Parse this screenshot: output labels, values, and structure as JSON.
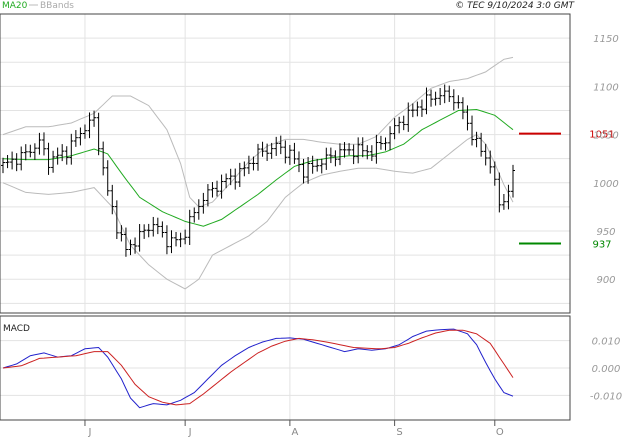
{
  "header": {
    "legend": [
      {
        "label": "MA20",
        "color": "#22aa22"
      },
      {
        "label": "BBands",
        "color": "#aaaaaa"
      }
    ],
    "copyright": "© TEC 9/10/2024 3:0 GMT"
  },
  "colors": {
    "price": "#000000",
    "ma20": "#22aa22",
    "bbands": "#bbbbbb",
    "resistance": "#cc0000",
    "support": "#008800",
    "macd": "#2222cc",
    "signal": "#cc2222"
  },
  "chart_data": [
    {
      "type": "ohlc",
      "title": "",
      "x_labels": [
        "J",
        "J",
        "A",
        "S",
        "O"
      ],
      "x_label_index": [
        18,
        40,
        63,
        86,
        108
      ],
      "n_periods": 113,
      "ylim": [
        865,
        1175
      ],
      "y_ticks": [
        900,
        950,
        1000,
        1050,
        1100,
        1150
      ],
      "grid": true,
      "close_anchors": [
        [
          0,
          1018
        ],
        [
          5,
          1030
        ],
        [
          8,
          1042
        ],
        [
          10,
          1022
        ],
        [
          14,
          1033
        ],
        [
          18,
          1058
        ],
        [
          20,
          1065
        ],
        [
          23,
          990
        ],
        [
          25,
          955
        ],
        [
          27,
          930
        ],
        [
          30,
          945
        ],
        [
          33,
          958
        ],
        [
          36,
          940
        ],
        [
          39,
          940
        ],
        [
          41,
          960
        ],
        [
          44,
          985
        ],
        [
          48,
          1000
        ],
        [
          52,
          1010
        ],
        [
          56,
          1030
        ],
        [
          60,
          1038
        ],
        [
          63,
          1030
        ],
        [
          66,
          1012
        ],
        [
          70,
          1022
        ],
        [
          74,
          1032
        ],
        [
          78,
          1034
        ],
        [
          81,
          1032
        ],
        [
          84,
          1045
        ],
        [
          87,
          1062
        ],
        [
          90,
          1075
        ],
        [
          93,
          1085
        ],
        [
          96,
          1092
        ],
        [
          99,
          1088
        ],
        [
          101,
          1072
        ],
        [
          104,
          1040
        ],
        [
          107,
          1020
        ],
        [
          108,
          998
        ],
        [
          109,
          978
        ],
        [
          111,
          990
        ],
        [
          112,
          1010
        ]
      ],
      "ma20_anchors": [
        [
          0,
          1025
        ],
        [
          5,
          1024
        ],
        [
          10,
          1024
        ],
        [
          15,
          1028
        ],
        [
          20,
          1035
        ],
        [
          23,
          1030
        ],
        [
          26,
          1010
        ],
        [
          30,
          985
        ],
        [
          35,
          970
        ],
        [
          40,
          960
        ],
        [
          44,
          955
        ],
        [
          48,
          962
        ],
        [
          52,
          975
        ],
        [
          56,
          988
        ],
        [
          60,
          1003
        ],
        [
          64,
          1017
        ],
        [
          68,
          1023
        ],
        [
          72,
          1026
        ],
        [
          76,
          1028
        ],
        [
          80,
          1028
        ],
        [
          84,
          1032
        ],
        [
          88,
          1040
        ],
        [
          92,
          1055
        ],
        [
          96,
          1065
        ],
        [
          100,
          1075
        ],
        [
          104,
          1076
        ],
        [
          108,
          1070
        ],
        [
          112,
          1055
        ]
      ],
      "band_upper_anchors": [
        [
          0,
          1050
        ],
        [
          5,
          1058
        ],
        [
          10,
          1058
        ],
        [
          15,
          1062
        ],
        [
          20,
          1072
        ],
        [
          24,
          1090
        ],
        [
          28,
          1090
        ],
        [
          32,
          1080
        ],
        [
          36,
          1055
        ],
        [
          39,
          1020
        ],
        [
          41,
          985
        ],
        [
          43,
          975
        ],
        [
          46,
          980
        ],
        [
          50,
          1000
        ],
        [
          54,
          1022
        ],
        [
          58,
          1038
        ],
        [
          62,
          1045
        ],
        [
          66,
          1045
        ],
        [
          70,
          1042
        ],
        [
          74,
          1040
        ],
        [
          78,
          1040
        ],
        [
          82,
          1048
        ],
        [
          86,
          1068
        ],
        [
          90,
          1082
        ],
        [
          94,
          1098
        ],
        [
          98,
          1105
        ],
        [
          102,
          1108
        ],
        [
          106,
          1115
        ],
        [
          110,
          1128
        ],
        [
          112,
          1130
        ]
      ],
      "band_lower_anchors": [
        [
          0,
          1000
        ],
        [
          5,
          990
        ],
        [
          10,
          988
        ],
        [
          15,
          990
        ],
        [
          20,
          995
        ],
        [
          24,
          975
        ],
        [
          28,
          935
        ],
        [
          32,
          915
        ],
        [
          36,
          900
        ],
        [
          40,
          890
        ],
        [
          43,
          900
        ],
        [
          46,
          925
        ],
        [
          50,
          935
        ],
        [
          54,
          945
        ],
        [
          58,
          960
        ],
        [
          62,
          985
        ],
        [
          66,
          1000
        ],
        [
          70,
          1008
        ],
        [
          74,
          1012
        ],
        [
          78,
          1015
        ],
        [
          82,
          1015
        ],
        [
          86,
          1012
        ],
        [
          90,
          1010
        ],
        [
          94,
          1015
        ],
        [
          98,
          1030
        ],
        [
          102,
          1045
        ],
        [
          104,
          1050
        ],
        [
          106,
          1040
        ],
        [
          108,
          1020
        ],
        [
          110,
          998
        ],
        [
          112,
          980
        ]
      ],
      "levels": [
        {
          "name": "resistance",
          "value": 1051,
          "label": "1051",
          "color": "#cc0000"
        },
        {
          "name": "support",
          "value": 937,
          "label": "937",
          "color": "#008800"
        }
      ]
    },
    {
      "type": "line",
      "title": "MACD",
      "ylim": [
        -0.019,
        0.019
      ],
      "y_ticks": [
        {
          "value": 0.01,
          "label": "0.010"
        },
        {
          "value": 0.0,
          "label": "0.000"
        },
        {
          "value": -0.01,
          "label": "-0.010"
        }
      ],
      "series": [
        {
          "name": "",
          "color": "#2222cc",
          "anchors": [
            [
              0,
              0.0
            ],
            [
              3,
              0.0015
            ],
            [
              6,
              0.0045
            ],
            [
              9,
              0.0055
            ],
            [
              12,
              0.004
            ],
            [
              15,
              0.0045
            ],
            [
              18,
              0.007
            ],
            [
              21,
              0.0075
            ],
            [
              23,
              0.004
            ],
            [
              26,
              -0.004
            ],
            [
              28,
              -0.011
            ],
            [
              30,
              -0.0145
            ],
            [
              33,
              -0.013
            ],
            [
              36,
              -0.0135
            ],
            [
              39,
              -0.0118
            ],
            [
              42,
              -0.009
            ],
            [
              45,
              -0.004
            ],
            [
              48,
              0.001
            ],
            [
              51,
              0.0045
            ],
            [
              54,
              0.0075
            ],
            [
              57,
              0.0095
            ],
            [
              60,
              0.0108
            ],
            [
              63,
              0.011
            ],
            [
              66,
              0.0105
            ],
            [
              69,
              0.009
            ],
            [
              72,
              0.0075
            ],
            [
              75,
              0.006
            ],
            [
              78,
              0.007
            ],
            [
              81,
              0.0065
            ],
            [
              84,
              0.007
            ],
            [
              87,
              0.0085
            ],
            [
              90,
              0.0115
            ],
            [
              93,
              0.0135
            ],
            [
              96,
              0.014
            ],
            [
              99,
              0.0142
            ],
            [
              102,
              0.0125
            ],
            [
              104,
              0.0085
            ],
            [
              106,
              0.002
            ],
            [
              108,
              -0.004
            ],
            [
              110,
              -0.009
            ],
            [
              112,
              -0.0103
            ]
          ]
        },
        {
          "name": "",
          "color": "#cc2222",
          "anchors": [
            [
              0,
              0.0
            ],
            [
              4,
              0.0008
            ],
            [
              8,
              0.0035
            ],
            [
              12,
              0.004
            ],
            [
              16,
              0.0045
            ],
            [
              20,
              0.006
            ],
            [
              23,
              0.006
            ],
            [
              26,
              0.001
            ],
            [
              29,
              -0.006
            ],
            [
              32,
              -0.0105
            ],
            [
              35,
              -0.0125
            ],
            [
              38,
              -0.0135
            ],
            [
              41,
              -0.013
            ],
            [
              44,
              -0.0095
            ],
            [
              47,
              -0.0055
            ],
            [
              50,
              -0.0015
            ],
            [
              53,
              0.002
            ],
            [
              56,
              0.0055
            ],
            [
              59,
              0.008
            ],
            [
              62,
              0.0098
            ],
            [
              65,
              0.0108
            ],
            [
              68,
              0.0103
            ],
            [
              71,
              0.0095
            ],
            [
              74,
              0.0085
            ],
            [
              77,
              0.0075
            ],
            [
              80,
              0.0072
            ],
            [
              83,
              0.007
            ],
            [
              86,
              0.0075
            ],
            [
              89,
              0.009
            ],
            [
              92,
              0.011
            ],
            [
              95,
              0.0128
            ],
            [
              98,
              0.0138
            ],
            [
              101,
              0.0138
            ],
            [
              104,
              0.0125
            ],
            [
              107,
              0.009
            ],
            [
              110,
              0.0015
            ],
            [
              112,
              -0.0035
            ]
          ]
        }
      ]
    }
  ]
}
